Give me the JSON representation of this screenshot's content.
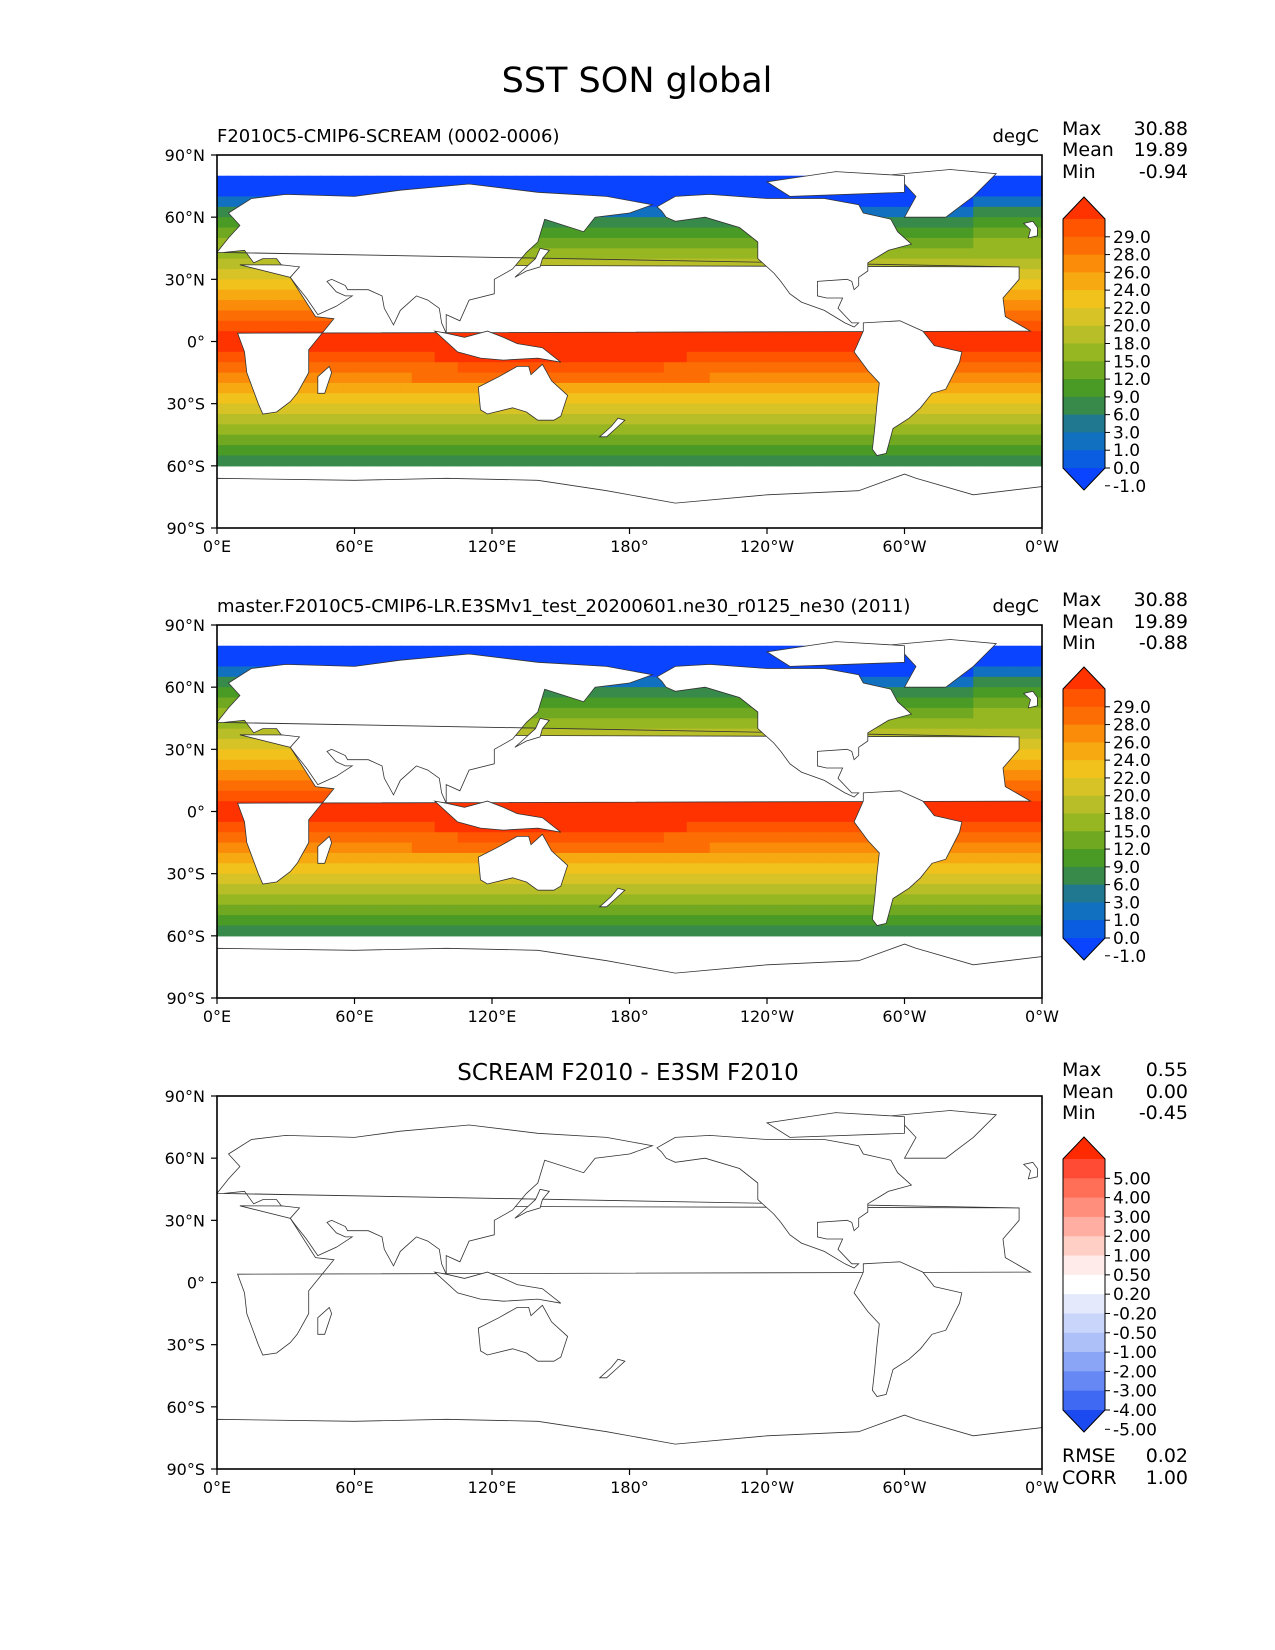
{
  "figure_title": "SST SON global",
  "lat_ticks": [
    "90°N",
    "60°N",
    "30°N",
    "0°",
    "30°S",
    "60°S",
    "90°S"
  ],
  "lon_ticks": [
    "0°E",
    "60°E",
    "120°E",
    "180°",
    "120°W",
    "60°W",
    "0°W"
  ],
  "chart_data": [
    {
      "type": "heatmap",
      "title_left": "F2010C5-CMIP6-SCREAM (0002-0006)",
      "units": "degC",
      "stats": [
        {
          "label": "Max",
          "value": "30.88"
        },
        {
          "label": "Mean",
          "value": "19.89"
        },
        {
          "label": "Min",
          "value": "-0.94"
        }
      ],
      "colorbar": {
        "labels": [
          "29.0",
          "28.0",
          "26.0",
          "24.0",
          "22.0",
          "20.0",
          "18.0",
          "15.0",
          "12.0",
          "9.0",
          "6.0",
          "3.0",
          "1.0",
          "0.0",
          "-1.0"
        ],
        "colors": [
          "#ff3300",
          "#ff5500",
          "#fc6e04",
          "#fa8c0a",
          "#f6a911",
          "#f2c21c",
          "#d8c326",
          "#b8be28",
          "#96b622",
          "#70a821",
          "#4a9a26",
          "#378a4a",
          "#1f7890",
          "#1170c0",
          "#0a5ce0",
          "#0a44ff"
        ]
      },
      "xlim": [
        0,
        360
      ],
      "ylim": [
        -90,
        90
      ]
    },
    {
      "type": "heatmap",
      "title_left": "master.F2010C5-CMIP6-LR.E3SMv1_test_20200601.ne30_r0125_ne30 (2011)",
      "units": "degC",
      "stats": [
        {
          "label": "Max",
          "value": "30.88"
        },
        {
          "label": "Mean",
          "value": "19.89"
        },
        {
          "label": "Min",
          "value": "-0.88"
        }
      ],
      "colorbar": {
        "labels": [
          "29.0",
          "28.0",
          "26.0",
          "24.0",
          "22.0",
          "20.0",
          "18.0",
          "15.0",
          "12.0",
          "9.0",
          "6.0",
          "3.0",
          "1.0",
          "0.0",
          "-1.0"
        ],
        "colors": [
          "#ff3300",
          "#ff5500",
          "#fc6e04",
          "#fa8c0a",
          "#f6a911",
          "#f2c21c",
          "#d8c326",
          "#b8be28",
          "#96b622",
          "#70a821",
          "#4a9a26",
          "#378a4a",
          "#1f7890",
          "#1170c0",
          "#0a5ce0",
          "#0a44ff"
        ]
      },
      "xlim": [
        0,
        360
      ],
      "ylim": [
        -90,
        90
      ]
    },
    {
      "type": "heatmap",
      "title_center": "SCREAM F2010 - E3SM F2010",
      "stats": [
        {
          "label": "Max",
          "value": "0.55"
        },
        {
          "label": "Mean",
          "value": "0.00"
        },
        {
          "label": "Min",
          "value": "-0.45"
        }
      ],
      "colorbar": {
        "labels": [
          "5.00",
          "4.00",
          "3.00",
          "2.00",
          "1.00",
          "0.50",
          "0.20",
          "-0.20",
          "-0.50",
          "-1.00",
          "-2.00",
          "-3.00",
          "-4.00",
          "-5.00"
        ],
        "colors": [
          "#ff2a00",
          "#ff4b33",
          "#ff6e57",
          "#ff8e7c",
          "#ffaea1",
          "#ffcfc5",
          "#ffecea",
          "#ffffff",
          "#e4eafc",
          "#c9d5fa",
          "#aec0f8",
          "#8aa4f6",
          "#6688f4",
          "#3f69f2",
          "#1a4af0"
        ]
      },
      "metrics": [
        {
          "label": "RMSE",
          "value": "0.02"
        },
        {
          "label": "CORR",
          "value": "1.00"
        }
      ],
      "xlim": [
        0,
        360
      ],
      "ylim": [
        -90,
        90
      ]
    }
  ]
}
